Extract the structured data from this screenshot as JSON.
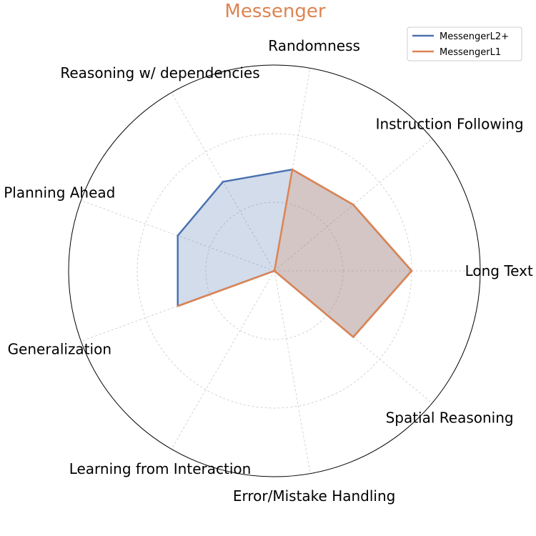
{
  "chart_data": {
    "type": "radar",
    "title": "Messenger",
    "title_color": "#DD8452",
    "axes": [
      "Long Text",
      "Instruction Following",
      "Randomness",
      "Reasoning w/ dependencies",
      "Planning Ahead",
      "Generalization",
      "Learning from Interaction",
      "Error/Mistake Handling",
      "Spatial Reasoning"
    ],
    "rlim": [
      0,
      3
    ],
    "grid": true,
    "legend_position": "top-right",
    "series": [
      {
        "name": "MessengerL2+",
        "color": "#4C72B0",
        "values": [
          2.0,
          1.5,
          1.5,
          1.5,
          1.5,
          1.5,
          0.0,
          0.0,
          1.5
        ]
      },
      {
        "name": "MessengerL1",
        "color": "#DD8452",
        "values": [
          2.0,
          1.5,
          1.5,
          0.0,
          0.0,
          1.5,
          0.0,
          0.0,
          1.5
        ]
      }
    ]
  }
}
